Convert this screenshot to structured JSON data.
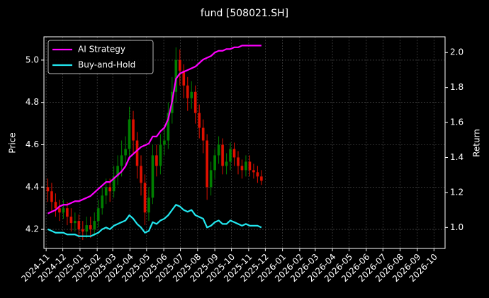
{
  "chart_data": {
    "type": "candlestick",
    "title": "fund [508021.SH]",
    "y_label": "Price",
    "y2_label": "Return",
    "grid": true,
    "legend": "upper left",
    "up_color": "#008000",
    "down_color": "#e01000",
    "xlim": [
      "2024-10-28",
      "2026-10-21"
    ],
    "xticks": [
      {
        "value": "2024-11-01",
        "label": "2024-11"
      },
      {
        "value": "2024-12-01",
        "label": "2024-12"
      },
      {
        "value": "2025-01-01",
        "label": "2025-01"
      },
      {
        "value": "2025-02-01",
        "label": "2025-02"
      },
      {
        "value": "2025-03-01",
        "label": "2025-03"
      },
      {
        "value": "2025-04-01",
        "label": "2025-04"
      },
      {
        "value": "2025-05-01",
        "label": "2025-05"
      },
      {
        "value": "2025-06-01",
        "label": "2025-06"
      },
      {
        "value": "2025-07-01",
        "label": "2025-07"
      },
      {
        "value": "2025-08-01",
        "label": "2025-08"
      },
      {
        "value": "2025-09-01",
        "label": "2025-09"
      },
      {
        "value": "2025-10-01",
        "label": "2025-10"
      },
      {
        "value": "2025-11-01",
        "label": "2025-11"
      },
      {
        "value": "2025-12-01",
        "label": "2025-12"
      },
      {
        "value": "2026-01-01",
        "label": "2026-01"
      },
      {
        "value": "2026-02-01",
        "label": "2026-02"
      },
      {
        "value": "2026-03-01",
        "label": "2026-03"
      },
      {
        "value": "2026-04-01",
        "label": "2026-04"
      },
      {
        "value": "2026-05-01",
        "label": "2026-05"
      },
      {
        "value": "2026-06-01",
        "label": "2026-06"
      },
      {
        "value": "2026-07-01",
        "label": "2026-07"
      },
      {
        "value": "2026-08-01",
        "label": "2026-08"
      },
      {
        "value": "2026-09-01",
        "label": "2026-09"
      },
      {
        "value": "2026-10-01",
        "label": "2026-10"
      }
    ],
    "ylim": [
      4.11,
      5.11
    ],
    "yticks": [
      4.2,
      4.4,
      4.6,
      4.8,
      {
        "value": 5,
        "label": "5.0"
      }
    ],
    "y2lim": [
      0.88,
      2.09
    ],
    "y2ticks": [
      {
        "value": 1,
        "label": "1.0"
      },
      1.2,
      1.4,
      1.6,
      1.8,
      {
        "value": 2,
        "label": "2.0"
      }
    ],
    "x": [
      "2024-11-04",
      "2024-11-11",
      "2024-11-18",
      "2024-11-25",
      "2024-12-02",
      "2024-12-09",
      "2024-12-16",
      "2024-12-23",
      "2024-12-30",
      "2025-01-06",
      "2025-01-13",
      "2025-01-20",
      "2025-01-27",
      "2025-02-03",
      "2025-02-10",
      "2025-02-17",
      "2025-02-24",
      "2025-03-03",
      "2025-03-10",
      "2025-03-17",
      "2025-03-24",
      "2025-03-31",
      "2025-04-07",
      "2025-04-14",
      "2025-04-21",
      "2025-04-28",
      "2025-05-05",
      "2025-05-12",
      "2025-05-19",
      "2025-05-26",
      "2025-06-02",
      "2025-06-09",
      "2025-06-16",
      "2025-06-23",
      "2025-06-30",
      "2025-07-07",
      "2025-07-14",
      "2025-07-21",
      "2025-07-28",
      "2025-08-04",
      "2025-08-11",
      "2025-08-18",
      "2025-08-25",
      "2025-09-01",
      "2025-09-08",
      "2025-09-15",
      "2025-09-22",
      "2025-09-29",
      "2025-10-06",
      "2025-10-13",
      "2025-10-20",
      "2025-10-27",
      "2025-11-03",
      "2025-11-10",
      "2025-11-17",
      "2025-11-24"
    ],
    "open": [
      4.4,
      4.38,
      4.33,
      4.3,
      4.28,
      4.3,
      4.26,
      4.23,
      4.24,
      4.2,
      4.19,
      4.22,
      4.2,
      4.24,
      4.3,
      4.36,
      4.4,
      4.38,
      4.45,
      4.5,
      4.55,
      4.58,
      4.72,
      4.62,
      4.5,
      4.42,
      4.28,
      4.35,
      4.55,
      4.5,
      4.6,
      4.62,
      4.75,
      4.85,
      5.0,
      4.95,
      4.88,
      4.82,
      4.85,
      4.75,
      4.68,
      4.62,
      4.4,
      4.48,
      4.55,
      4.6,
      4.5,
      4.52,
      4.58,
      4.54,
      4.5,
      4.48,
      4.52,
      4.48,
      4.47,
      4.45
    ],
    "high": [
      4.44,
      4.42,
      4.37,
      4.34,
      4.34,
      4.33,
      4.3,
      4.28,
      4.27,
      4.24,
      4.26,
      4.26,
      4.28,
      4.34,
      4.4,
      4.44,
      4.44,
      4.5,
      4.55,
      4.62,
      4.64,
      4.78,
      4.76,
      4.66,
      4.55,
      4.46,
      4.4,
      4.6,
      4.6,
      4.65,
      4.68,
      4.8,
      4.92,
      5.06,
      5.05,
      4.98,
      4.92,
      4.9,
      4.88,
      4.79,
      4.72,
      4.65,
      4.52,
      4.58,
      4.64,
      4.63,
      4.56,
      4.61,
      4.61,
      4.57,
      4.53,
      4.55,
      4.55,
      4.51,
      4.5,
      4.48
    ],
    "low": [
      4.33,
      4.28,
      4.26,
      4.24,
      4.25,
      4.22,
      4.19,
      4.19,
      4.16,
      4.15,
      4.16,
      4.16,
      4.17,
      4.21,
      4.27,
      4.32,
      4.33,
      4.35,
      4.41,
      4.45,
      4.5,
      4.54,
      4.56,
      4.44,
      4.36,
      4.22,
      4.24,
      4.32,
      4.45,
      4.46,
      4.55,
      4.58,
      4.7,
      4.8,
      4.88,
      4.82,
      4.76,
      4.77,
      4.7,
      4.63,
      4.56,
      4.34,
      4.36,
      4.44,
      4.51,
      4.46,
      4.46,
      4.48,
      4.5,
      4.46,
      4.44,
      4.45,
      4.45,
      4.44,
      4.42,
      4.41
    ],
    "close": [
      4.38,
      4.33,
      4.3,
      4.28,
      4.3,
      4.26,
      4.23,
      4.24,
      4.2,
      4.19,
      4.22,
      4.2,
      4.24,
      4.3,
      4.36,
      4.4,
      4.38,
      4.45,
      4.5,
      4.55,
      4.58,
      4.72,
      4.62,
      4.5,
      4.42,
      4.28,
      4.35,
      4.55,
      4.5,
      4.6,
      4.62,
      4.75,
      4.85,
      5.0,
      4.95,
      4.88,
      4.82,
      4.85,
      4.75,
      4.68,
      4.62,
      4.4,
      4.48,
      4.55,
      4.6,
      4.5,
      4.52,
      4.58,
      4.54,
      4.5,
      4.48,
      4.52,
      4.48,
      4.47,
      4.45,
      4.43
    ],
    "series": [
      {
        "name": "AI Strategy",
        "color": "#ff00ff",
        "axis": "y2",
        "values": [
          1.08,
          1.09,
          1.1,
          1.12,
          1.13,
          1.13,
          1.14,
          1.15,
          1.15,
          1.16,
          1.17,
          1.18,
          1.2,
          1.22,
          1.24,
          1.26,
          1.26,
          1.28,
          1.3,
          1.32,
          1.35,
          1.4,
          1.42,
          1.44,
          1.46,
          1.47,
          1.48,
          1.52,
          1.52,
          1.55,
          1.57,
          1.62,
          1.72,
          1.85,
          1.88,
          1.89,
          1.9,
          1.91,
          1.92,
          1.94,
          1.96,
          1.97,
          1.98,
          2.0,
          2.01,
          2.01,
          2.02,
          2.02,
          2.03,
          2.03,
          2.04,
          2.04,
          2.04,
          2.04,
          2.04,
          2.04
        ]
      },
      {
        "name": "Buy-and-Hold",
        "color": "#22e8f0",
        "axis": "y2",
        "values": [
          0.99,
          0.98,
          0.97,
          0.97,
          0.97,
          0.96,
          0.96,
          0.96,
          0.95,
          0.95,
          0.95,
          0.95,
          0.96,
          0.97,
          0.99,
          1.0,
          0.99,
          1.01,
          1.02,
          1.03,
          1.04,
          1.07,
          1.05,
          1.02,
          1.0,
          0.97,
          0.98,
          1.03,
          1.02,
          1.04,
          1.05,
          1.07,
          1.1,
          1.13,
          1.12,
          1.1,
          1.09,
          1.1,
          1.07,
          1.06,
          1.05,
          1.0,
          1.01,
          1.03,
          1.04,
          1.02,
          1.02,
          1.04,
          1.03,
          1.02,
          1.01,
          1.02,
          1.01,
          1.01,
          1.01,
          1.0
        ]
      }
    ]
  }
}
